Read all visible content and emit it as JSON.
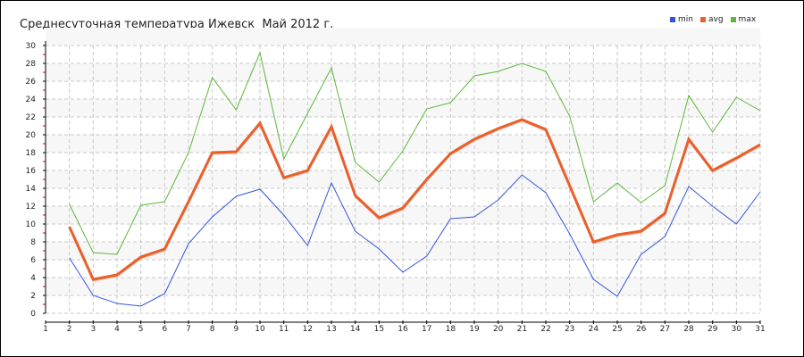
{
  "chart_data": {
    "type": "line",
    "title": "Среднесуточная температура Ижевск  Май 2012 г.",
    "xlabel": "",
    "ylabel": "",
    "x": [
      2,
      3,
      4,
      5,
      6,
      7,
      8,
      9,
      10,
      11,
      12,
      13,
      14,
      15,
      16,
      17,
      18,
      19,
      20,
      21,
      22,
      23,
      24,
      25,
      26,
      27,
      28,
      29,
      30,
      31
    ],
    "xlim": [
      1,
      31
    ],
    "ylim": [
      0,
      30
    ],
    "xticks": [
      1,
      2,
      3,
      4,
      5,
      6,
      7,
      8,
      9,
      10,
      11,
      12,
      13,
      14,
      15,
      16,
      17,
      18,
      19,
      20,
      21,
      22,
      23,
      24,
      25,
      26,
      27,
      28,
      29,
      30,
      31
    ],
    "yticks": [
      0,
      2,
      4,
      6,
      8,
      10,
      12,
      14,
      16,
      18,
      20,
      22,
      24,
      26,
      28,
      30
    ],
    "grid": true,
    "legend_position": "top-right",
    "series": [
      {
        "name": "min",
        "color": "#3355dd",
        "values": [
          6.2,
          2.0,
          1.1,
          0.8,
          2.2,
          7.8,
          10.8,
          13.1,
          13.9,
          11.0,
          7.6,
          14.6,
          9.2,
          7.2,
          4.6,
          6.4,
          10.6,
          10.8,
          12.7,
          15.5,
          13.5,
          8.9,
          3.8,
          1.9,
          6.6,
          8.6,
          14.2,
          12.0,
          10.0,
          13.6
        ]
      },
      {
        "name": "avg",
        "color": "#e8602c",
        "values": [
          9.7,
          3.8,
          4.3,
          6.3,
          7.2,
          12.5,
          18.0,
          18.1,
          21.3,
          15.2,
          16.0,
          20.9,
          13.2,
          10.7,
          11.8,
          15.0,
          17.9,
          19.5,
          20.7,
          21.7,
          20.6,
          14.3,
          8.0,
          8.8,
          9.2,
          11.2,
          19.5,
          16.0,
          17.4,
          18.9
        ]
      },
      {
        "name": "max",
        "color": "#5db83a",
        "values": [
          12.2,
          6.8,
          6.6,
          12.1,
          12.5,
          18.0,
          26.4,
          22.8,
          29.2,
          17.3,
          22.4,
          27.5,
          16.9,
          14.7,
          18.2,
          22.9,
          23.6,
          26.6,
          27.1,
          28.0,
          27.1,
          22.1,
          12.5,
          14.6,
          12.4,
          14.3,
          24.4,
          20.3,
          24.2,
          22.7
        ]
      }
    ]
  }
}
